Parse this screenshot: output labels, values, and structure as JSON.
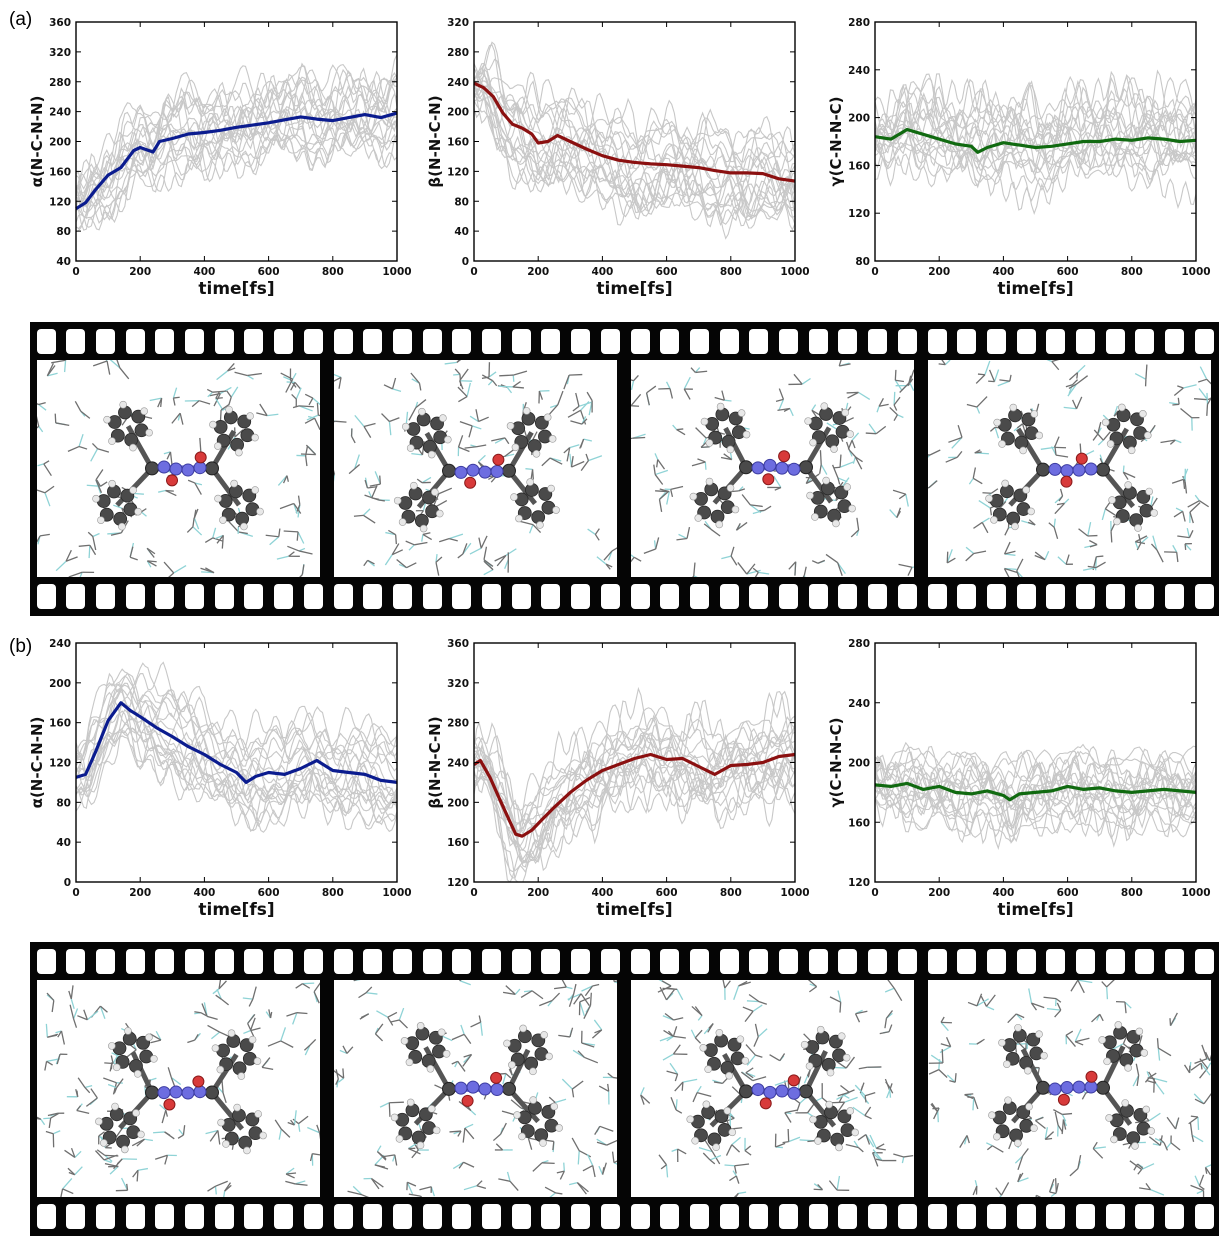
{
  "labels": {
    "a": "(a)",
    "b": "(b)"
  },
  "colors": {
    "blue": "#0b1c8f",
    "red": "#8b1010",
    "green": "#106a10",
    "gray": "#c8c8c8"
  },
  "chart_data": [
    {
      "id": "a-alpha",
      "type": "line",
      "panel": "(a)",
      "xlabel": "time[fs]",
      "ylabel": "α(N-C-N-N)",
      "xlim": [
        0,
        1000
      ],
      "ylim": [
        40,
        360
      ],
      "xticks": [
        0,
        200,
        400,
        600,
        800,
        1000
      ],
      "yticks": [
        40,
        80,
        120,
        160,
        200,
        240,
        280,
        320,
        360
      ],
      "color": "#0b1c8f",
      "grid": false,
      "series": [
        {
          "x": [
            0,
            30,
            60,
            100,
            140,
            180,
            200,
            240,
            260,
            300,
            350,
            400,
            450,
            500,
            550,
            600,
            650,
            700,
            750,
            800,
            850,
            900,
            950,
            1000
          ],
          "y": [
            110,
            118,
            135,
            155,
            165,
            188,
            192,
            186,
            200,
            204,
            210,
            212,
            215,
            219,
            222,
            225,
            229,
            233,
            230,
            228,
            232,
            236,
            232,
            238
          ]
        }
      ]
    },
    {
      "id": "a-beta",
      "type": "line",
      "panel": "(a)",
      "xlabel": "time[fs]",
      "ylabel": "β(N-N-C-N)",
      "xlim": [
        0,
        1000
      ],
      "ylim": [
        0,
        320
      ],
      "xticks": [
        0,
        200,
        400,
        600,
        800,
        1000
      ],
      "yticks": [
        0,
        40,
        80,
        120,
        160,
        200,
        240,
        280,
        320
      ],
      "color": "#8b1010",
      "grid": false,
      "series": [
        {
          "x": [
            0,
            30,
            60,
            90,
            120,
            150,
            180,
            200,
            230,
            260,
            300,
            350,
            400,
            450,
            500,
            550,
            600,
            650,
            700,
            750,
            800,
            850,
            900,
            950,
            1000
          ],
          "y": [
            238,
            232,
            220,
            198,
            183,
            178,
            170,
            158,
            160,
            168,
            160,
            150,
            141,
            135,
            132,
            130,
            129,
            127,
            125,
            121,
            118,
            118,
            117,
            110,
            107
          ]
        }
      ]
    },
    {
      "id": "a-gamma",
      "type": "line",
      "panel": "(a)",
      "xlabel": "time[fs]",
      "ylabel": "γ(C-N-N-C)",
      "xlim": [
        0,
        1000
      ],
      "ylim": [
        80,
        280
      ],
      "xticks": [
        0,
        200,
        400,
        600,
        800,
        1000
      ],
      "yticks": [
        80,
        120,
        160,
        200,
        240,
        280
      ],
      "color": "#106a10",
      "grid": false,
      "series": [
        {
          "x": [
            0,
            50,
            100,
            150,
            200,
            250,
            300,
            320,
            350,
            400,
            450,
            500,
            550,
            600,
            650,
            700,
            750,
            800,
            850,
            900,
            950,
            1000
          ],
          "y": [
            184,
            182,
            190,
            186,
            182,
            178,
            176,
            171,
            175,
            179,
            177,
            175,
            176,
            178,
            180,
            180,
            182,
            181,
            183,
            182,
            180,
            181
          ]
        }
      ]
    },
    {
      "id": "b-alpha",
      "type": "line",
      "panel": "(b)",
      "xlabel": "time[fs]",
      "ylabel": "α(N-C-N-N)",
      "xlim": [
        0,
        1000
      ],
      "ylim": [
        0,
        240
      ],
      "xticks": [
        0,
        200,
        400,
        600,
        800,
        1000
      ],
      "yticks": [
        0,
        40,
        80,
        120,
        160,
        200,
        240
      ],
      "color": "#0b1c8f",
      "grid": false,
      "series": [
        {
          "x": [
            0,
            30,
            60,
            100,
            140,
            170,
            200,
            250,
            300,
            350,
            400,
            450,
            500,
            530,
            560,
            600,
            650,
            700,
            750,
            800,
            850,
            900,
            950,
            1000
          ],
          "y": [
            105,
            108,
            130,
            162,
            180,
            172,
            166,
            155,
            146,
            136,
            128,
            118,
            110,
            100,
            106,
            110,
            108,
            114,
            122,
            112,
            110,
            108,
            102,
            100
          ]
        }
      ]
    },
    {
      "id": "b-beta",
      "type": "line",
      "panel": "(b)",
      "xlabel": "time[fs]",
      "ylabel": "β(N-N-C-N)",
      "xlim": [
        0,
        1000
      ],
      "ylim": [
        120,
        360
      ],
      "xticks": [
        0,
        200,
        400,
        600,
        800,
        1000
      ],
      "yticks": [
        120,
        160,
        200,
        240,
        280,
        320,
        360
      ],
      "color": "#8b1010",
      "grid": false,
      "series": [
        {
          "x": [
            0,
            20,
            50,
            80,
            110,
            130,
            150,
            180,
            210,
            250,
            300,
            350,
            400,
            450,
            500,
            550,
            600,
            650,
            700,
            750,
            800,
            850,
            900,
            950,
            1000
          ],
          "y": [
            238,
            242,
            225,
            203,
            182,
            168,
            166,
            172,
            182,
            195,
            210,
            222,
            232,
            238,
            244,
            248,
            243,
            244,
            236,
            228,
            237,
            238,
            240,
            246,
            248
          ]
        }
      ]
    },
    {
      "id": "b-gamma",
      "type": "line",
      "panel": "(b)",
      "xlabel": "time[fs]",
      "ylabel": "γ(C-N-N-C)",
      "xlim": [
        0,
        1000
      ],
      "ylim": [
        120,
        280
      ],
      "xticks": [
        0,
        200,
        400,
        600,
        800,
        1000
      ],
      "yticks": [
        120,
        160,
        200,
        240,
        280
      ],
      "color": "#106a10",
      "grid": false,
      "series": [
        {
          "x": [
            0,
            50,
            100,
            150,
            200,
            250,
            300,
            350,
            400,
            420,
            450,
            500,
            550,
            600,
            650,
            700,
            750,
            800,
            850,
            900,
            950,
            1000
          ],
          "y": [
            185,
            184,
            186,
            182,
            184,
            180,
            179,
            181,
            178,
            175,
            179,
            180,
            181,
            184,
            182,
            183,
            181,
            180,
            181,
            182,
            181,
            180
          ]
        }
      ]
    }
  ]
}
